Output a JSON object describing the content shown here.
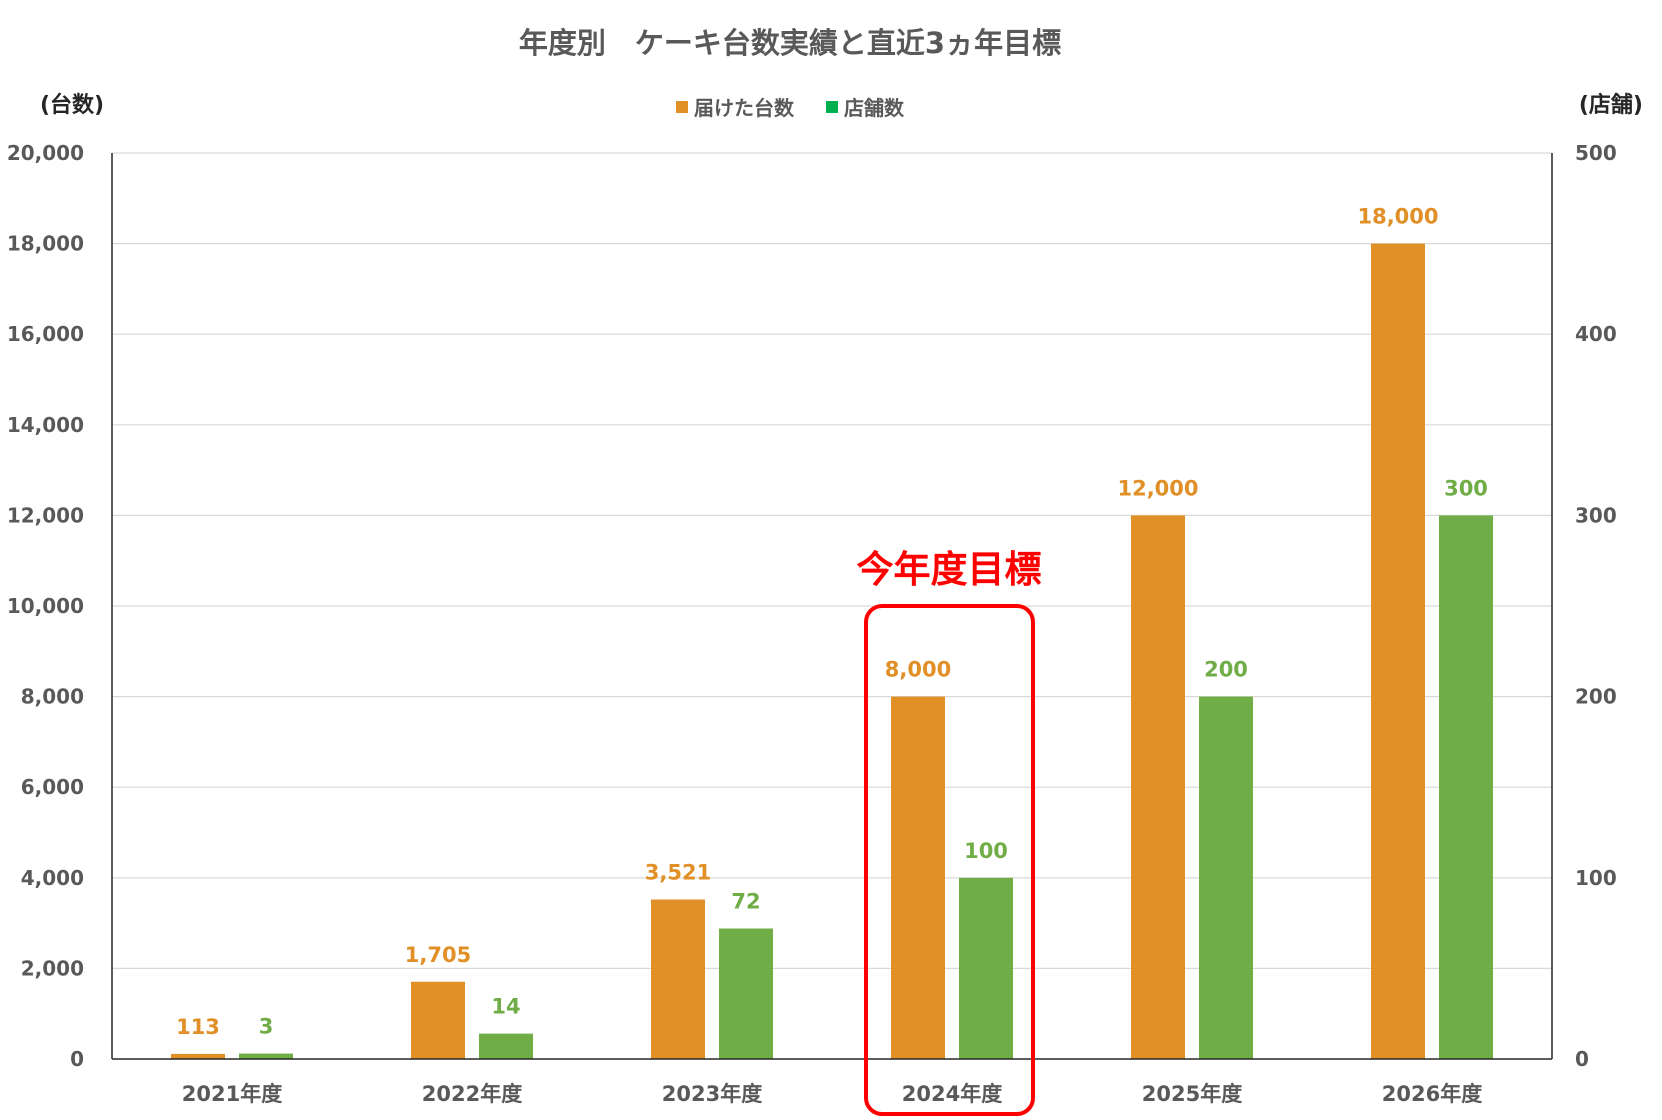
{
  "chart_data": {
    "type": "bar",
    "title": "年度別　ケーキ台数実績と直近3ヵ年目標",
    "y_left_label": "(台数)",
    "y_right_label": "(店舗)",
    "legend": [
      {
        "name": "届けた台数",
        "color": "#E19028"
      },
      {
        "name": "店舗数",
        "color": "#00B050"
      }
    ],
    "legend_position": "top-center",
    "categories": [
      "2021年度",
      "2022年度",
      "2023年度",
      "2024年度",
      "2025年度",
      "2026年度"
    ],
    "series": [
      {
        "name": "届けた台数",
        "axis": "left",
        "color": "#E19028",
        "label_color": "#E19028",
        "values": [
          113,
          1705,
          3521,
          8000,
          12000,
          18000
        ],
        "labels": [
          "113",
          "1,705",
          "3,521",
          "8,000",
          "12,000",
          "18,000"
        ]
      },
      {
        "name": "店舗数",
        "axis": "right",
        "color": "#70AD47",
        "label_color": "#70AD47",
        "values": [
          3,
          14,
          72,
          100,
          200,
          300
        ],
        "labels": [
          "3",
          "14",
          "72",
          "100",
          "200",
          "300"
        ]
      }
    ],
    "y_left": {
      "min": 0,
      "max": 20000,
      "step": 2000,
      "ticks": [
        "0",
        "2,000",
        "4,000",
        "6,000",
        "8,000",
        "10,000",
        "12,000",
        "14,000",
        "16,000",
        "18,000",
        "20,000"
      ]
    },
    "y_right": {
      "min": 0,
      "max": 500,
      "step": 100,
      "ticks": [
        "0",
        "100",
        "200",
        "300",
        "400",
        "500"
      ]
    },
    "grid": true,
    "annotation": {
      "text": "今年度目標",
      "category": "2024年度",
      "color": "#FF0000"
    }
  }
}
